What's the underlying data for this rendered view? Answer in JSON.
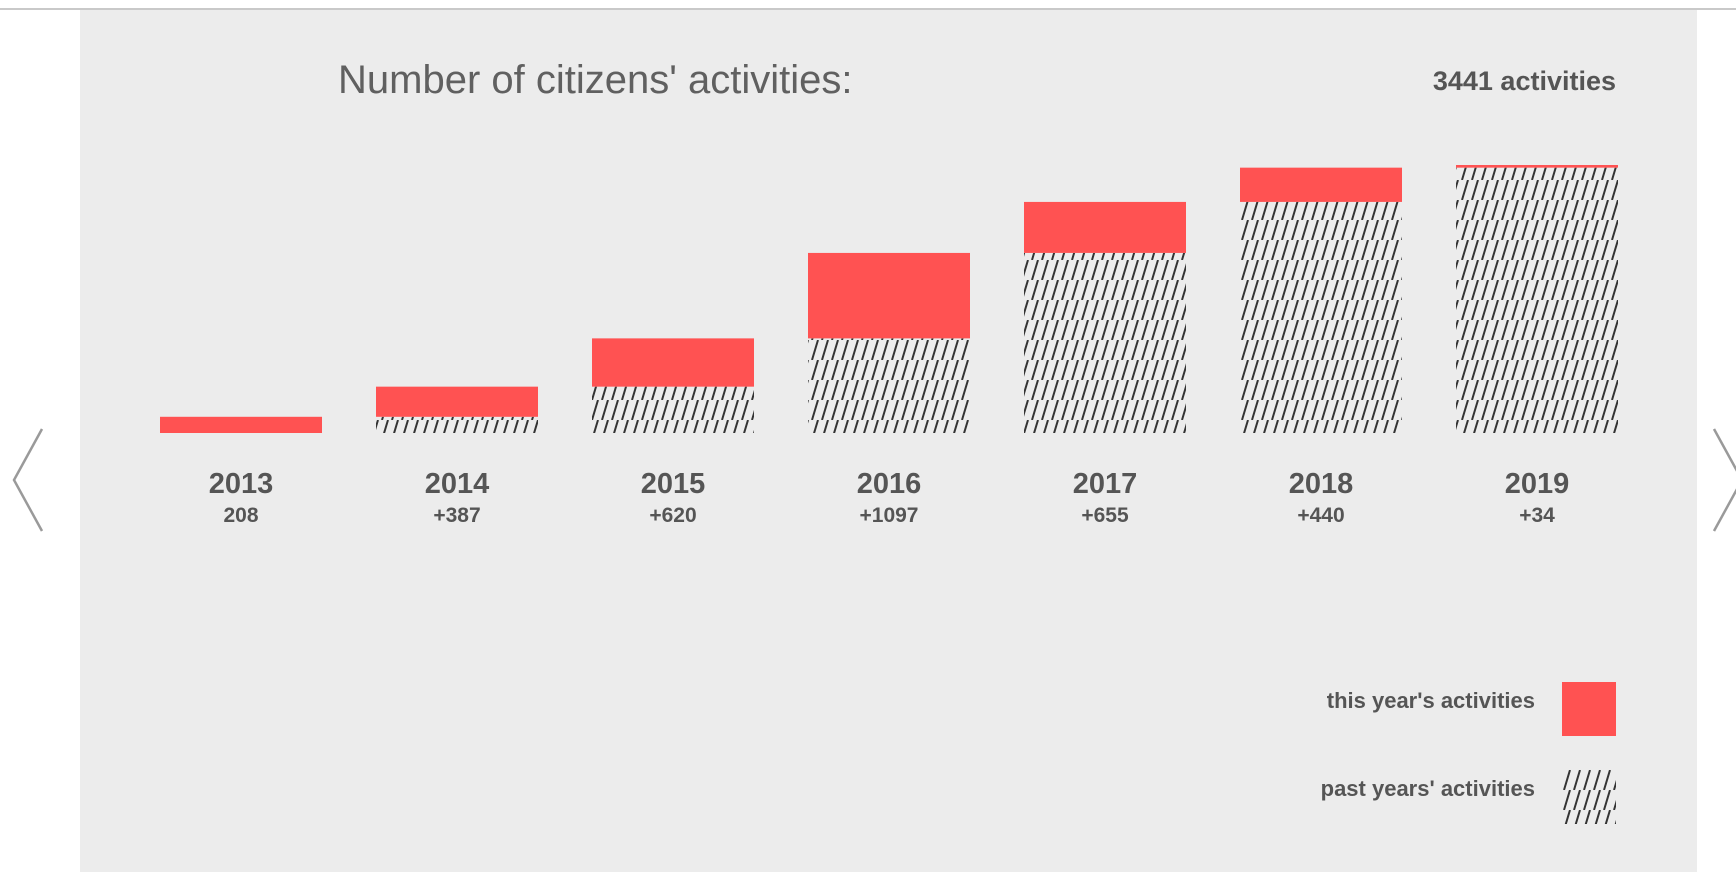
{
  "title": "Number of citizens' activities:",
  "total_label": "3441 activities",
  "colors": {
    "current": "#ff5252",
    "past_hatch": "#333333",
    "background": "#ececec"
  },
  "legend": {
    "current": "this year's activities",
    "past": "past years' activities"
  },
  "chart_data": {
    "type": "bar",
    "stacked": true,
    "title": "Number of citizens' activities:",
    "categories": [
      "2013",
      "2014",
      "2015",
      "2016",
      "2017",
      "2018",
      "2019"
    ],
    "increment_labels": [
      "208",
      "+387",
      "+620",
      "+1097",
      "+655",
      "+440",
      "+34"
    ],
    "series": [
      {
        "name": "past years' activities",
        "values": [
          0,
          208,
          595,
          1215,
          2312,
          2967,
          3407
        ]
      },
      {
        "name": "this year's activities",
        "values": [
          208,
          387,
          620,
          1097,
          655,
          440,
          34
        ]
      }
    ],
    "ylim": [
      0,
      3441
    ],
    "grid": false,
    "legend_position": "bottom-right"
  }
}
